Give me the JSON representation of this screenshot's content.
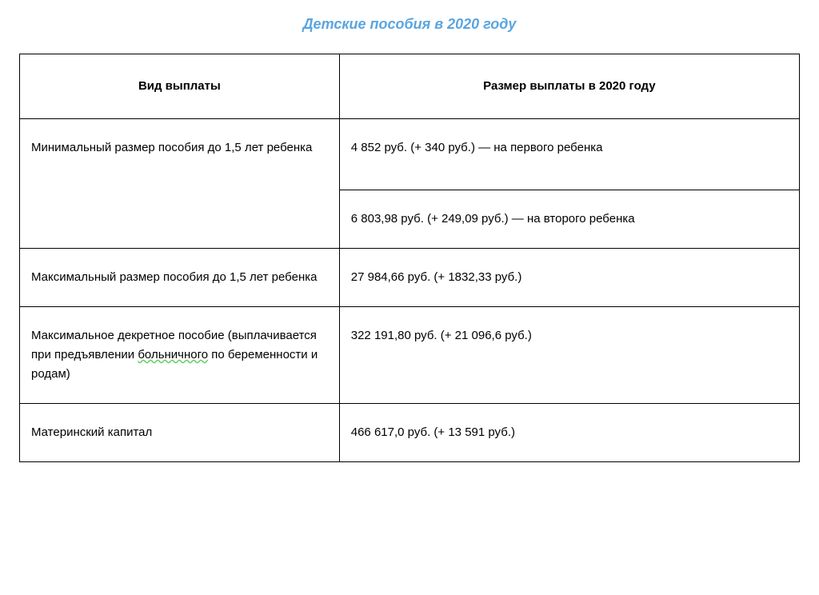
{
  "title": "Детские пособия в 2020 году",
  "table": {
    "columns": [
      "Вид выплаты",
      "Размер выплаты в 2020 году"
    ],
    "rows": [
      {
        "type_label": "Минимальный размер пособия до 1,5 лет ребенка",
        "type_rowspan": 2,
        "values": [
          "4 852 руб. (+ 340 руб.) — на первого ребенка",
          "6 803,98 руб. (+ 249,09 руб.) — на второго ребенка"
        ]
      },
      {
        "type_label": "Максимальный размер пособия до 1,5 лет ребенка",
        "values": [
          "27 984,66 руб. (+ 1832,33 руб.)"
        ]
      },
      {
        "type_label_parts": {
          "pre": "Максимальное декретное пособие (выплачивается при предъявлении ",
          "wavy": "больничного",
          "post": " по беременности и родам)"
        },
        "values": [
          "322 191,80 руб. (+ 21 096,6 руб.)"
        ]
      },
      {
        "type_label": "Материнский капитал",
        "values": [
          "466 617,0 руб. (+ 13 591 руб.)"
        ]
      }
    ],
    "colors": {
      "title": "#5ba5e0",
      "border": "#000000",
      "text": "#000000",
      "wavy_underline": "#66cc66",
      "background": "#ffffff"
    },
    "typography": {
      "title_fontsize": 18,
      "title_style": "bold italic",
      "cell_fontsize": 15,
      "header_weight": "bold",
      "font_family": "Verdana"
    },
    "layout": {
      "col1_width_pct": 41,
      "col2_width_pct": 59
    }
  }
}
